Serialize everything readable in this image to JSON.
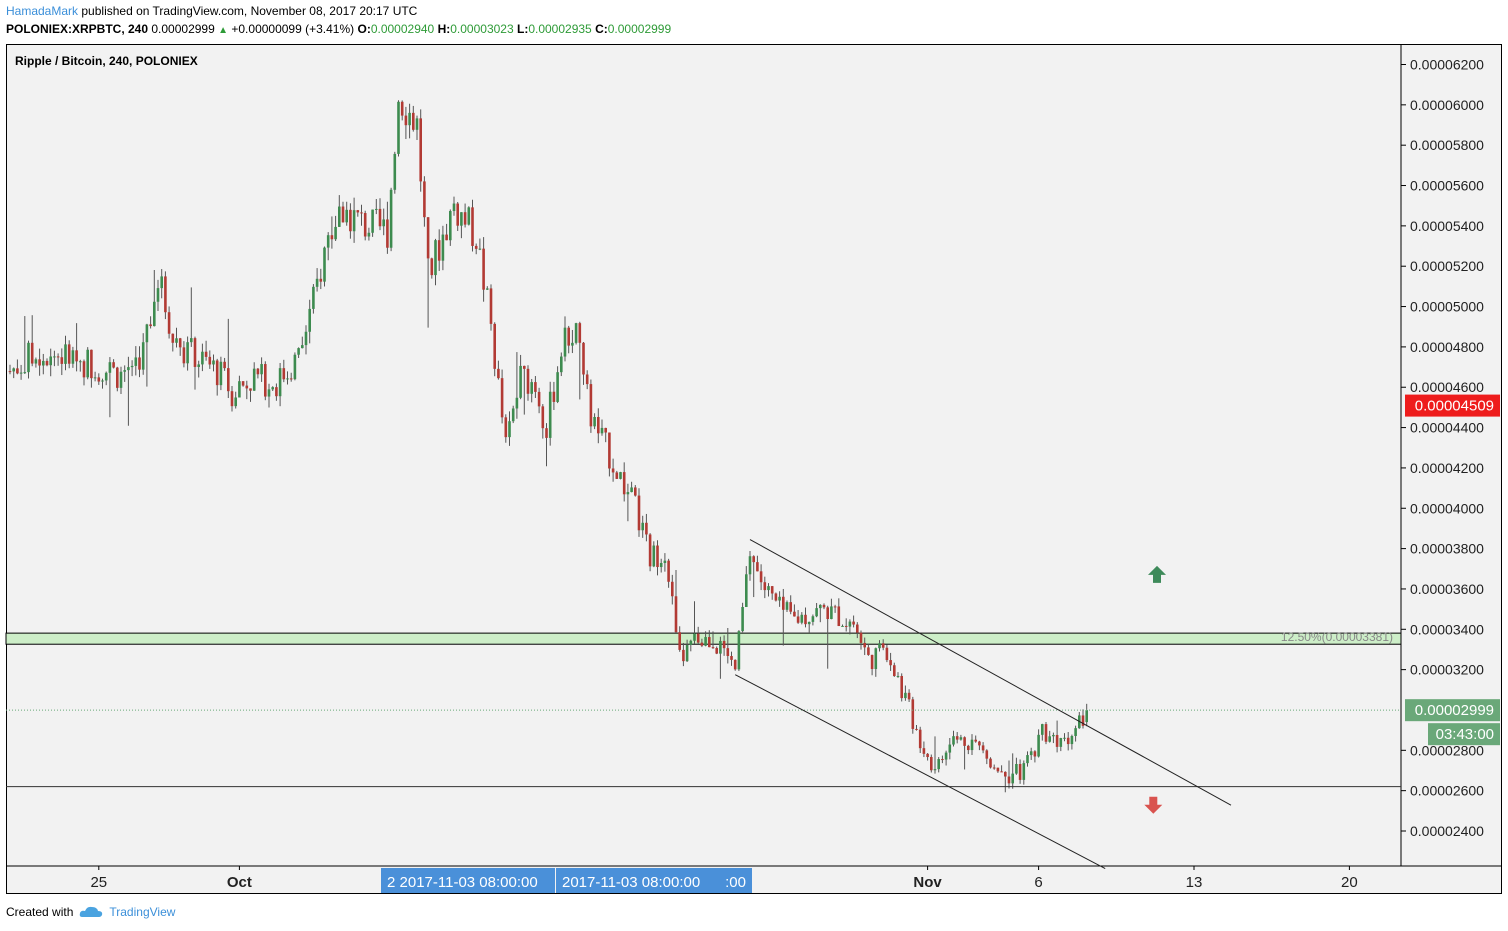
{
  "header": {
    "author": "HamadaMark",
    "published": "published on TradingView.com, November 08, 2017 20:17 UTC",
    "symbol": "POLONIEX:XRPBTC, 240",
    "last": "0.00002999",
    "change": "+0.00000099 (+3.41%)",
    "o_label": "O:",
    "o": "0.00002940",
    "h_label": "H:",
    "h": "0.00003023",
    "l_label": "L:",
    "l": "0.00002935",
    "c_label": "C:",
    "c": "0.00002999"
  },
  "footer": {
    "created_with": "Created with",
    "brand": "TradingView"
  },
  "colors": {
    "up": "#3d8b4f",
    "down": "#b23a34",
    "bg": "#f2f2f2",
    "fib_band": "#cdeec8",
    "red_tag": "#ee1c1c",
    "green_tag": "#6aa879",
    "cross_tag": "#4a90d9"
  },
  "chart_data": {
    "type": "candlestick",
    "title": "Ripple / Bitcoin, 240, POLONIEX",
    "ylim": [
      2.28e-05,
      6.34e-05
    ],
    "y_ticks": [
      "0.00006200",
      "0.00006000",
      "0.00005800",
      "0.00005600",
      "0.00005400",
      "0.00005200",
      "0.00005000",
      "0.00004800",
      "0.00004600",
      "0.00004400",
      "0.00004200",
      "0.00004000",
      "0.00003800",
      "0.00003600",
      "0.00003400",
      "0.00003200",
      "0.00002800",
      "0.00002600",
      "0.00002400"
    ],
    "x_ticks": [
      {
        "label": "25",
        "bar": 24
      },
      {
        "label": "Oct",
        "bar": 62
      },
      {
        "label": "Nov",
        "bar": 248
      },
      {
        "label": "6",
        "bar": 278
      },
      {
        "label": "13",
        "bar": 320
      },
      {
        "label": "20",
        "bar": 362
      }
    ],
    "crosshair_labels": [
      "2 2017-11-03 08:00:00",
      "2017-11-03 08:00:00",
      ":00"
    ],
    "price_tags": [
      {
        "text": "0.00004509",
        "value": 4.509e-05,
        "kind": "red"
      },
      {
        "text": "0.00002999",
        "value": 2.999e-05,
        "kind": "green"
      },
      {
        "text": "03:43:00",
        "value": 2.999e-05,
        "kind": "timer"
      }
    ],
    "fib_label": "12.50%(0.00003381)",
    "fib_band": [
      3.326e-05,
      3.381e-05
    ],
    "horizontal_line": 2.62e-05,
    "current_price": 2.999e-05,
    "channel": {
      "upper": [
        [
          200,
          3.845e-05
        ],
        [
          330,
          2.528e-05
        ]
      ],
      "lower": [
        [
          196,
          3.175e-05
        ],
        [
          296,
          2.214e-05
        ]
      ]
    },
    "arrows": [
      {
        "dir": "up",
        "bar": 310,
        "value": 3.67e-05
      },
      {
        "dir": "down",
        "bar": 309,
        "value": 2.53e-05
      }
    ],
    "anchors": [
      [
        0,
        4.68e-05
      ],
      [
        8,
        4.78e-05
      ],
      [
        20,
        4.73e-05
      ],
      [
        30,
        4.66e-05
      ],
      [
        36,
        4.78e-05
      ],
      [
        40,
        5.15e-05
      ],
      [
        44,
        4.85e-05
      ],
      [
        50,
        4.75e-05
      ],
      [
        56,
        4.68e-05
      ],
      [
        60,
        4.58e-05
      ],
      [
        66,
        4.65e-05
      ],
      [
        72,
        4.62e-05
      ],
      [
        78,
        4.75e-05
      ],
      [
        82,
        5.02e-05
      ],
      [
        86,
        5.35e-05
      ],
      [
        90,
        5.48e-05
      ],
      [
        96,
        5.4e-05
      ],
      [
        102,
        5.38e-05
      ],
      [
        105,
        6.05e-05
      ],
      [
        110,
        5.9e-05
      ],
      [
        113,
        5.15e-05
      ],
      [
        116,
        5.3e-05
      ],
      [
        120,
        5.5e-05
      ],
      [
        126,
        5.35e-05
      ],
      [
        130,
        4.9e-05
      ],
      [
        134,
        4.3e-05
      ],
      [
        138,
        4.65e-05
      ],
      [
        142,
        4.62e-05
      ],
      [
        145,
        4.4e-05
      ],
      [
        149,
        4.8e-05
      ],
      [
        153,
        4.9e-05
      ],
      [
        157,
        4.45e-05
      ],
      [
        161,
        4.3e-05
      ],
      [
        165,
        4.15e-05
      ],
      [
        169,
        4e-05
      ],
      [
        173,
        3.75e-05
      ],
      [
        177,
        3.8e-05
      ],
      [
        181,
        3.25e-05
      ],
      [
        186,
        3.35e-05
      ],
      [
        190,
        3.35e-05
      ],
      [
        196,
        3.2e-05
      ],
      [
        200,
        3.78e-05
      ],
      [
        204,
        3.6e-05
      ],
      [
        208,
        3.5e-05
      ],
      [
        212,
        3.45e-05
      ],
      [
        220,
        3.5e-05
      ],
      [
        228,
        3.43e-05
      ],
      [
        232,
        3.25e-05
      ],
      [
        237,
        3.3e-05
      ],
      [
        242,
        3.05e-05
      ],
      [
        246,
        2.85e-05
      ],
      [
        250,
        2.7e-05
      ],
      [
        255,
        2.85e-05
      ],
      [
        260,
        2.85e-05
      ],
      [
        265,
        2.75e-05
      ],
      [
        270,
        2.68e-05
      ],
      [
        274,
        2.7e-05
      ],
      [
        279,
        2.9e-05
      ],
      [
        284,
        2.85e-05
      ],
      [
        288,
        2.9e-05
      ],
      [
        291,
        3e-05
      ]
    ]
  }
}
